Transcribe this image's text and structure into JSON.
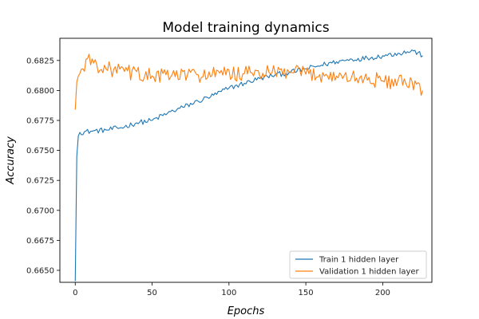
{
  "chart_data": {
    "type": "line",
    "title": "Model training dynamics",
    "xlabel": "Epochs",
    "ylabel": "Accuracy",
    "xlim": [
      -10,
      232
    ],
    "ylim": [
      0.664,
      0.68435
    ],
    "x_ticks": [
      0,
      50,
      100,
      150,
      200
    ],
    "y_ticks": [
      0.665,
      0.6675,
      0.67,
      0.6725,
      0.675,
      0.6775,
      0.68,
      0.6825
    ],
    "y_tick_labels": [
      "0.6650",
      "0.6675",
      "0.6700",
      "0.6725",
      "0.6750",
      "0.6775",
      "0.6800",
      "0.6825"
    ],
    "legend_position": "lower-right",
    "grid": false,
    "x_start": 0,
    "x_end": 226,
    "series": [
      {
        "name": "Train 1 hidden layer",
        "color": "#1f77b4",
        "keypoints": [
          [
            0,
            0.6641
          ],
          [
            1,
            0.6745
          ],
          [
            2,
            0.6762
          ],
          [
            3,
            0.6765
          ],
          [
            10,
            0.6766
          ],
          [
            20,
            0.6767
          ],
          [
            30,
            0.6769
          ],
          [
            40,
            0.6773
          ],
          [
            50,
            0.6775
          ],
          [
            60,
            0.6781
          ],
          [
            70,
            0.6786
          ],
          [
            80,
            0.6791
          ],
          [
            90,
            0.6796
          ],
          [
            100,
            0.6802
          ],
          [
            110,
            0.6806
          ],
          [
            120,
            0.681
          ],
          [
            130,
            0.6813
          ],
          [
            140,
            0.6815
          ],
          [
            150,
            0.6818
          ],
          [
            160,
            0.6821
          ],
          [
            170,
            0.6824
          ],
          [
            180,
            0.6826
          ],
          [
            190,
            0.6827
          ],
          [
            200,
            0.6829
          ],
          [
            210,
            0.6831
          ],
          [
            220,
            0.6833
          ],
          [
            226,
            0.6829
          ]
        ],
        "noise_amplitude": 0.00022
      },
      {
        "name": "Validation 1 hidden layer",
        "color": "#ff7f0e",
        "keypoints": [
          [
            0,
            0.6784
          ],
          [
            1,
            0.6807
          ],
          [
            2,
            0.6812
          ],
          [
            5,
            0.6818
          ],
          [
            7,
            0.6826
          ],
          [
            20,
            0.6818
          ],
          [
            50,
            0.6812
          ],
          [
            80,
            0.6813
          ],
          [
            110,
            0.6814
          ],
          [
            140,
            0.6815
          ],
          [
            170,
            0.6812
          ],
          [
            200,
            0.6808
          ],
          [
            215,
            0.6806
          ],
          [
            226,
            0.68
          ]
        ],
        "noise_amplitude": 0.00065
      }
    ]
  }
}
